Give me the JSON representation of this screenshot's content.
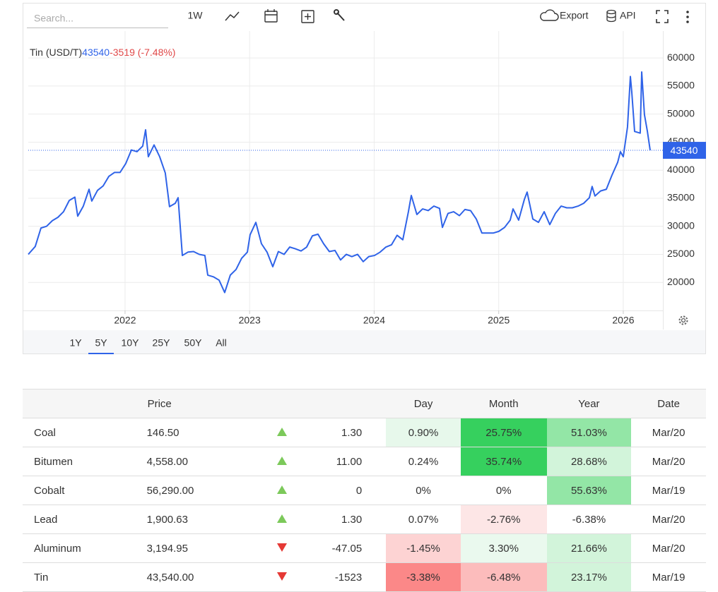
{
  "toolbar": {
    "search_placeholder": "Search...",
    "interval": "1W",
    "export": "Export",
    "api": "API"
  },
  "chart_data": {
    "type": "line",
    "series": [
      {
        "name": "Tin (USD/T)",
        "color": "#2f63e8"
      }
    ],
    "last_value": 43540,
    "change": "-3519 (-7.48%)",
    "x": [
      2021.223,
      2021.279,
      2021.325,
      2021.37,
      2021.416,
      2021.461,
      2021.506,
      2021.552,
      2021.597,
      2021.62,
      2021.665,
      2021.711,
      2021.733,
      2021.779,
      2021.824,
      2021.87,
      2021.915,
      2021.96,
      2022.006,
      2022.051,
      2022.096,
      2022.142,
      2022.165,
      2022.187,
      2022.233,
      2022.278,
      2022.323,
      2022.357,
      2022.403,
      2022.426,
      2022.46,
      2022.505,
      2022.55,
      2022.596,
      2022.641,
      2022.664,
      2022.709,
      2022.755,
      2022.8,
      2022.845,
      2022.891,
      2022.936,
      2022.982,
      2023.004,
      2023.05,
      2023.095,
      2023.14,
      2023.186,
      2023.231,
      2023.277,
      2023.322,
      2023.367,
      2023.413,
      2023.458,
      2023.504,
      2023.549,
      2023.594,
      2023.64,
      2023.685,
      2023.73,
      2023.776,
      2023.821,
      2023.867,
      2023.912,
      2023.957,
      2024.003,
      2024.048,
      2024.094,
      2024.139,
      2024.184,
      2024.23,
      2024.275,
      2024.298,
      2024.343,
      2024.389,
      2024.434,
      2024.479,
      2024.525,
      2024.548,
      2024.593,
      2024.638,
      2024.684,
      2024.729,
      2024.774,
      2024.82,
      2024.865,
      2024.911,
      2024.956,
      2025.001,
      2025.047,
      2025.092,
      2025.115,
      2025.16,
      2025.206,
      2025.228,
      2025.274,
      2025.319,
      2025.365,
      2025.41,
      2025.455,
      2025.501,
      2025.546,
      2025.591,
      2025.637,
      2025.682,
      2025.728,
      2025.75,
      2025.773,
      2025.818,
      2025.864,
      2025.909,
      2025.955,
      2025.977,
      2026.0,
      2026.034,
      2026.057,
      2026.068,
      2026.091,
      2026.136,
      2026.148,
      2026.17,
      2026.193,
      2026.216
    ],
    "values": [
      25000,
      26400,
      29700,
      30000,
      31000,
      31600,
      32600,
      34600,
      35200,
      31800,
      33600,
      36600,
      34500,
      36400,
      37200,
      38900,
      39600,
      39600,
      41200,
      43600,
      43300,
      44300,
      47200,
      42400,
      44500,
      42400,
      39500,
      33500,
      34100,
      35100,
      24800,
      25400,
      25500,
      25000,
      24800,
      21300,
      21000,
      20400,
      18200,
      21300,
      22300,
      24300,
      25400,
      28500,
      30700,
      26900,
      25400,
      22800,
      25500,
      25000,
      26300,
      26000,
      25600,
      26300,
      28300,
      28600,
      26900,
      25500,
      25700,
      24000,
      25000,
      24600,
      25000,
      23700,
      24600,
      24800,
      25400,
      26300,
      26700,
      28400,
      27600,
      32600,
      35500,
      32100,
      33100,
      32800,
      33600,
      33200,
      29800,
      32300,
      32600,
      31900,
      33000,
      32800,
      31300,
      28800,
      28800,
      28800,
      29100,
      29800,
      31100,
      33100,
      31100,
      34800,
      36100,
      31300,
      30700,
      32600,
      30300,
      32300,
      33600,
      33300,
      33300,
      33600,
      34100,
      35100,
      37100,
      35400,
      36300,
      36600,
      39100,
      41400,
      43300,
      42400,
      47700,
      56700,
      54000,
      46900,
      46600,
      57500,
      49900,
      47000,
      43540
    ],
    "xlim": [
      2021.223,
      2026.318
    ],
    "xticks": [
      2022,
      2023,
      2024,
      2025,
      2026
    ],
    "ylim": [
      15000,
      64800
    ],
    "yticks": [
      20000,
      25000,
      30000,
      35000,
      40000,
      45000,
      50000,
      55000,
      60000
    ],
    "grid": true,
    "ranges": [
      "1Y",
      "5Y",
      "10Y",
      "25Y",
      "50Y",
      "All"
    ],
    "active_range": "5Y"
  },
  "table": {
    "header": {
      "price": "Price",
      "day": "Day",
      "month": "Month",
      "year": "Year",
      "date": "Date"
    },
    "rows": [
      {
        "name": "Coal",
        "price": "146.50",
        "direction": "up",
        "change": "1.30",
        "day": "0.90%",
        "month": "25.75%",
        "year": "51.03%",
        "date": "Mar/20",
        "colors": [
          "#e7f8eb",
          "#36d05e",
          "#93e6a6"
        ]
      },
      {
        "name": "Bitumen",
        "price": "4,558.00",
        "direction": "up",
        "change": "11.00",
        "day": "0.24%",
        "month": "35.74%",
        "year": "28.68%",
        "date": "Mar/20",
        "colors": [
          "#ffffff",
          "#36d05e",
          "#d2f4da"
        ]
      },
      {
        "name": "Cobalt",
        "price": "56,290.00",
        "direction": "up",
        "change": "0",
        "day": "0%",
        "month": "0%",
        "year": "55.63%",
        "date": "Mar/19",
        "colors": [
          "#ffffff",
          "#ffffff",
          "#93e6a6"
        ]
      },
      {
        "name": "Lead",
        "price": "1,900.63",
        "direction": "up",
        "change": "1.30",
        "day": "0.07%",
        "month": "-2.76%",
        "year": "-6.38%",
        "date": "Mar/20",
        "colors": [
          "#ffffff",
          "#fde6e6",
          "#ffffff"
        ]
      },
      {
        "name": "Aluminum",
        "price": "3,194.95",
        "direction": "down",
        "change": "-47.05",
        "day": "-1.45%",
        "month": "3.30%",
        "year": "21.66%",
        "date": "Mar/20",
        "colors": [
          "#fdd3d3",
          "#eaf9ee",
          "#d2f4da"
        ]
      },
      {
        "name": "Tin",
        "price": "43,540.00",
        "direction": "down",
        "change": "-1523",
        "day": "-3.38%",
        "month": "-6.48%",
        "year": "23.17%",
        "date": "Mar/19",
        "colors": [
          "#fb8888",
          "#fcbcbc",
          "#d2f4da"
        ]
      }
    ]
  }
}
